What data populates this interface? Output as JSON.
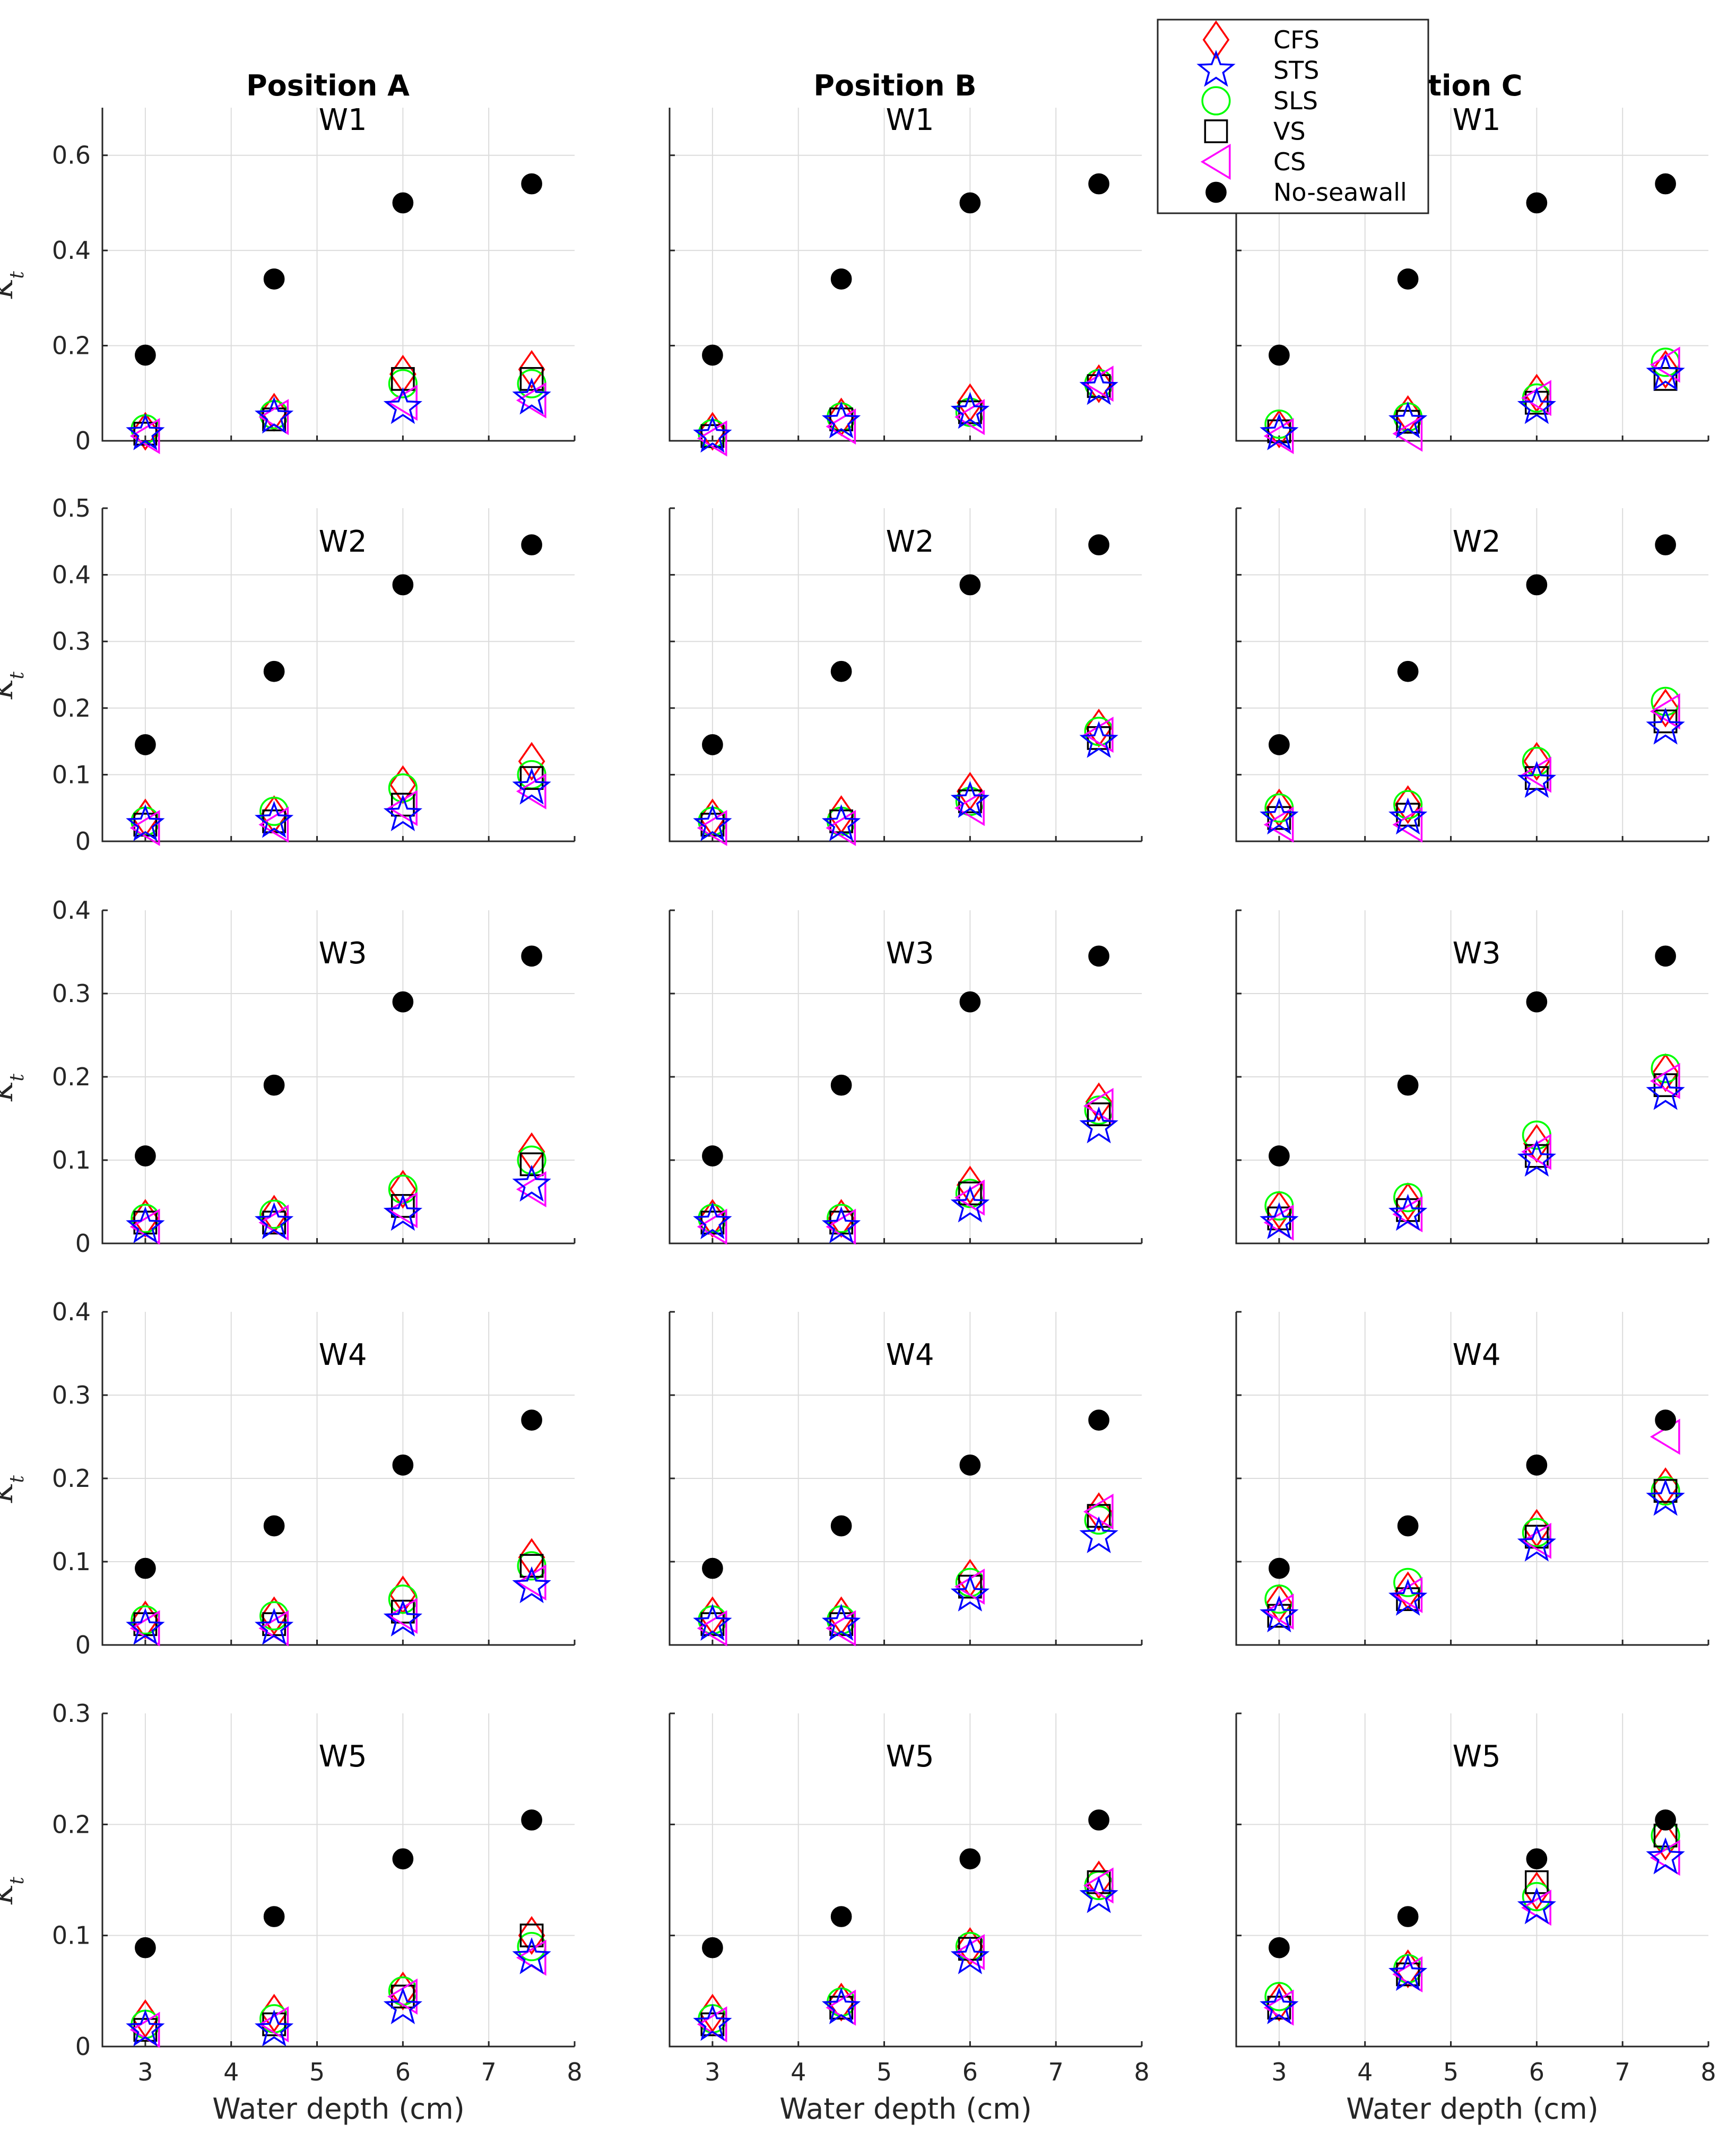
{
  "chart_data": {
    "type": "scatter",
    "layout": "5 rows (W1-W5) x 3 columns (Position A, Position B, Position C)",
    "columns": [
      "Position A",
      "Position B",
      "Position C"
    ],
    "column_titles_shown": [
      "Position A",
      "Position B",
      "sition C"
    ],
    "rows": [
      "W1",
      "W2",
      "W3",
      "W4",
      "W5"
    ],
    "ylabel": "K_t",
    "xlabel": "Water depth (cm)",
    "x": [
      3,
      4.5,
      6,
      7.5
    ],
    "xlim": [
      2.5,
      8
    ],
    "xticks": [
      3,
      4,
      5,
      6,
      7,
      8
    ],
    "grid": true,
    "legend_position": "top-right",
    "legend": [
      {
        "name": "CFS",
        "marker": "diamond",
        "color": "#ff0000"
      },
      {
        "name": "STS",
        "marker": "star",
        "color": "#0000ff"
      },
      {
        "name": "SLS",
        "marker": "circle",
        "color": "#00ff00"
      },
      {
        "name": "VS",
        "marker": "square",
        "color": "#000000"
      },
      {
        "name": "CS",
        "marker": "triangle-left",
        "color": "#ff00ff"
      },
      {
        "name": "No-seawall",
        "marker": "filled-circle",
        "color": "#000000"
      }
    ],
    "row_axes": [
      {
        "ylim": [
          0,
          0.7
        ],
        "yticks": [
          0,
          0.2,
          0.4,
          0.6
        ],
        "tick_labels": [
          "0",
          "0.2",
          "0.4",
          "0.6"
        ]
      },
      {
        "ylim": [
          0,
          0.5
        ],
        "yticks": [
          0,
          0.1,
          0.2,
          0.3,
          0.4,
          0.5
        ],
        "tick_labels": [
          "0",
          "0.1",
          "0.2",
          "0.3",
          "0.4",
          "0.5"
        ]
      },
      {
        "ylim": [
          0,
          0.4
        ],
        "yticks": [
          0,
          0.1,
          0.2,
          0.3,
          0.4
        ],
        "tick_labels": [
          "0",
          "0.1",
          "0.2",
          "0.3",
          "0.4"
        ]
      },
      {
        "ylim": [
          0,
          0.4
        ],
        "yticks": [
          0,
          0.1,
          0.2,
          0.3,
          0.4
        ],
        "tick_labels": [
          "0",
          "0.1",
          "0.2",
          "0.3",
          "0.4"
        ]
      },
      {
        "ylim": [
          0,
          0.3
        ],
        "yticks": [
          0,
          0.1,
          0.2,
          0.3
        ],
        "tick_labels": [
          "0",
          "0.1",
          "0.2",
          "0.3"
        ]
      }
    ],
    "panels": [
      [
        {
          "position": "Position A",
          "wave": "W1",
          "series": {
            "CFS": [
              0.02,
              0.06,
              0.14,
              0.15
            ],
            "STS": [
              0.015,
              0.05,
              0.07,
              0.09
            ],
            "SLS": [
              0.025,
              0.055,
              0.12,
              0.12
            ],
            "VS": [
              0.015,
              0.045,
              0.13,
              0.13
            ],
            "CS": [
              0.01,
              0.05,
              0.08,
              0.085
            ],
            "No-seawall": [
              0.18,
              0.34,
              0.5,
              0.54
            ]
          }
        },
        {
          "position": "Position B",
          "wave": "W1",
          "series": {
            "CFS": [
              0.02,
              0.05,
              0.08,
              0.12
            ],
            "STS": [
              0.01,
              0.04,
              0.06,
              0.11
            ],
            "SLS": [
              0.015,
              0.05,
              0.06,
              0.12
            ],
            "VS": [
              0.01,
              0.045,
              0.06,
              0.115
            ],
            "CS": [
              0.005,
              0.03,
              0.05,
              0.12
            ],
            "No-seawall": [
              0.18,
              0.34,
              0.5,
              0.54
            ]
          }
        },
        {
          "position": "Position C",
          "wave": "W1",
          "series": {
            "CFS": [
              0.025,
              0.055,
              0.1,
              0.15
            ],
            "STS": [
              0.015,
              0.04,
              0.07,
              0.14
            ],
            "SLS": [
              0.035,
              0.05,
              0.09,
              0.165
            ],
            "VS": [
              0.02,
              0.04,
              0.08,
              0.13
            ],
            "CS": [
              0.01,
              0.015,
              0.09,
              0.16
            ],
            "No-seawall": [
              0.18,
              0.34,
              0.5,
              0.54
            ]
          }
        }
      ],
      [
        {
          "position": "Position A",
          "wave": "W2",
          "series": {
            "CFS": [
              0.035,
              0.04,
              0.085,
              0.12
            ],
            "STS": [
              0.025,
              0.03,
              0.04,
              0.08
            ],
            "SLS": [
              0.03,
              0.045,
              0.08,
              0.1
            ],
            "VS": [
              0.025,
              0.03,
              0.055,
              0.095
            ],
            "CS": [
              0.02,
              0.025,
              0.05,
              0.075
            ],
            "No-seawall": [
              0.145,
              0.255,
              0.385,
              0.445
            ]
          }
        },
        {
          "position": "Position B",
          "wave": "W2",
          "series": {
            "CFS": [
              0.035,
              0.04,
              0.075,
              0.17
            ],
            "STS": [
              0.025,
              0.025,
              0.06,
              0.15
            ],
            "SLS": [
              0.03,
              0.03,
              0.06,
              0.165
            ],
            "VS": [
              0.025,
              0.03,
              0.06,
              0.155
            ],
            "CS": [
              0.02,
              0.02,
              0.05,
              0.16
            ],
            "No-seawall": [
              0.145,
              0.255,
              0.385,
              0.445
            ]
          }
        },
        {
          "position": "Position C",
          "wave": "W2",
          "series": {
            "CFS": [
              0.05,
              0.055,
              0.12,
              0.2
            ],
            "STS": [
              0.035,
              0.035,
              0.09,
              0.17
            ],
            "SLS": [
              0.05,
              0.055,
              0.12,
              0.21
            ],
            "VS": [
              0.035,
              0.04,
              0.095,
              0.18
            ],
            "CS": [
              0.025,
              0.025,
              0.1,
              0.195
            ],
            "No-seawall": [
              0.145,
              0.255,
              0.385,
              0.445
            ]
          }
        }
      ],
      [
        {
          "position": "Position A",
          "wave": "W3",
          "series": {
            "CFS": [
              0.03,
              0.035,
              0.065,
              0.11
            ],
            "STS": [
              0.02,
              0.025,
              0.035,
              0.07
            ],
            "SLS": [
              0.03,
              0.035,
              0.065,
              0.1
            ],
            "VS": [
              0.025,
              0.025,
              0.045,
              0.095
            ],
            "CS": [
              0.02,
              0.025,
              0.04,
              0.065
            ],
            "No-seawall": [
              0.105,
              0.19,
              0.29,
              0.345
            ]
          }
        },
        {
          "position": "Position B",
          "wave": "W3",
          "series": {
            "CFS": [
              0.03,
              0.03,
              0.07,
              0.17
            ],
            "STS": [
              0.025,
              0.02,
              0.045,
              0.14
            ],
            "SLS": [
              0.03,
              0.03,
              0.06,
              0.16
            ],
            "VS": [
              0.025,
              0.025,
              0.06,
              0.155
            ],
            "CS": [
              0.02,
              0.02,
              0.055,
              0.165
            ],
            "No-seawall": [
              0.105,
              0.19,
              0.29,
              0.345
            ]
          }
        },
        {
          "position": "Position C",
          "wave": "W3",
          "series": {
            "CFS": [
              0.04,
              0.05,
              0.12,
              0.205
            ],
            "STS": [
              0.025,
              0.035,
              0.1,
              0.18
            ],
            "SLS": [
              0.045,
              0.055,
              0.13,
              0.21
            ],
            "VS": [
              0.03,
              0.04,
              0.105,
              0.19
            ],
            "CS": [
              0.025,
              0.035,
              0.11,
              0.195
            ],
            "No-seawall": [
              0.105,
              0.19,
              0.29,
              0.345
            ]
          }
        }
      ],
      [
        {
          "position": "Position A",
          "wave": "W4",
          "series": {
            "CFS": [
              0.03,
              0.035,
              0.06,
              0.105
            ],
            "STS": [
              0.02,
              0.02,
              0.03,
              0.07
            ],
            "SLS": [
              0.03,
              0.035,
              0.055,
              0.095
            ],
            "VS": [
              0.025,
              0.025,
              0.04,
              0.095
            ],
            "CS": [
              0.02,
              0.02,
              0.035,
              0.075
            ],
            "No-seawall": [
              0.092,
              0.143,
              0.216,
              0.27
            ]
          }
        },
        {
          "position": "Position B",
          "wave": "W4",
          "series": {
            "CFS": [
              0.035,
              0.035,
              0.08,
              0.16
            ],
            "STS": [
              0.025,
              0.025,
              0.06,
              0.13
            ],
            "SLS": [
              0.03,
              0.03,
              0.075,
              0.15
            ],
            "VS": [
              0.025,
              0.025,
              0.07,
              0.155
            ],
            "CS": [
              0.02,
              0.02,
              0.07,
              0.16
            ],
            "No-seawall": [
              0.092,
              0.143,
              0.216,
              0.27
            ]
          }
        },
        {
          "position": "Position C",
          "wave": "W4",
          "series": {
            "CFS": [
              0.05,
              0.065,
              0.14,
              0.19
            ],
            "STS": [
              0.035,
              0.055,
              0.12,
              0.175
            ],
            "SLS": [
              0.055,
              0.075,
              0.135,
              0.185
            ],
            "VS": [
              0.035,
              0.055,
              0.13,
              0.185
            ],
            "CS": [
              0.04,
              0.06,
              0.125,
              0.25
            ],
            "No-seawall": [
              0.092,
              0.143,
              0.216,
              0.27
            ]
          }
        }
      ],
      [
        {
          "position": "Position A",
          "wave": "W5",
          "series": {
            "CFS": [
              0.025,
              0.03,
              0.05,
              0.1
            ],
            "STS": [
              0.015,
              0.015,
              0.035,
              0.08
            ],
            "SLS": [
              0.02,
              0.025,
              0.05,
              0.09
            ],
            "VS": [
              0.015,
              0.02,
              0.045,
              0.1
            ],
            "CS": [
              0.015,
              0.02,
              0.045,
              0.08
            ],
            "No-seawall": [
              0.089,
              0.117,
              0.169,
              0.204
            ]
          }
        },
        {
          "position": "Position B",
          "wave": "W5",
          "series": {
            "CFS": [
              0.03,
              0.04,
              0.09,
              0.15
            ],
            "STS": [
              0.02,
              0.035,
              0.08,
              0.135
            ],
            "SLS": [
              0.025,
              0.04,
              0.09,
              0.145
            ],
            "VS": [
              0.02,
              0.035,
              0.088,
              0.148
            ],
            "CS": [
              0.02,
              0.035,
              0.085,
              0.145
            ],
            "No-seawall": [
              0.089,
              0.117,
              0.169,
              0.204
            ]
          }
        },
        {
          "position": "Position C",
          "wave": "W5",
          "series": {
            "CFS": [
              0.04,
              0.07,
              0.14,
              0.185
            ],
            "STS": [
              0.035,
              0.065,
              0.125,
              0.17
            ],
            "SLS": [
              0.045,
              0.07,
              0.135,
              0.19
            ],
            "VS": [
              0.035,
              0.065,
              0.148,
              0.19
            ],
            "CS": [
              0.035,
              0.065,
              0.125,
              0.17
            ],
            "No-seawall": [
              0.089,
              0.117,
              0.169,
              0.204
            ]
          }
        }
      ]
    ]
  }
}
